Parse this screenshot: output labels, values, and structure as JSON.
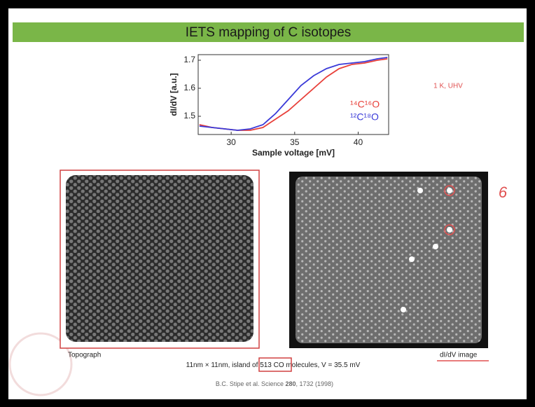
{
  "slide": {
    "title": "IETS mapping of C isotopes",
    "annotation": "1 K, UHV",
    "handwritten": "6",
    "caption_left": "Topograph",
    "caption_right": "dI/dV image",
    "summary": [
      "11nm × 11nm,  island of ",
      "513 CO",
      " molecules, V = 35.5 mV"
    ],
    "citation": [
      "B.C. Stipe et al. Science ",
      "280",
      ", 1732 (1998)"
    ]
  },
  "chart_data": {
    "type": "line",
    "xlabel": "Sample voltage [mV]",
    "ylabel": "dI/dV [a.u.]",
    "x": [
      27.5,
      28.5,
      29.5,
      30.5,
      31.5,
      32.5,
      33.5,
      34.5,
      35.5,
      36.5,
      37.5,
      38.5,
      39.5,
      40.5,
      41.5,
      42.3
    ],
    "series": [
      {
        "name": "¹⁴C¹⁶O",
        "color": "#e8403a",
        "values": [
          1.47,
          1.46,
          1.455,
          1.45,
          1.45,
          1.46,
          1.49,
          1.52,
          1.56,
          1.6,
          1.64,
          1.67,
          1.685,
          1.69,
          1.7,
          1.705
        ]
      },
      {
        "name": "¹²C¹⁸O",
        "color": "#3a3ad8",
        "values": [
          1.465,
          1.46,
          1.455,
          1.45,
          1.455,
          1.47,
          1.51,
          1.56,
          1.61,
          1.645,
          1.67,
          1.685,
          1.69,
          1.695,
          1.705,
          1.71
        ]
      }
    ],
    "xlim": [
      27.4,
      42.4
    ],
    "ylim": [
      1.435,
      1.72
    ],
    "xticks": [
      30,
      35,
      40
    ],
    "yticks": [
      1.5,
      1.6,
      1.7
    ],
    "legend": "lower right"
  }
}
